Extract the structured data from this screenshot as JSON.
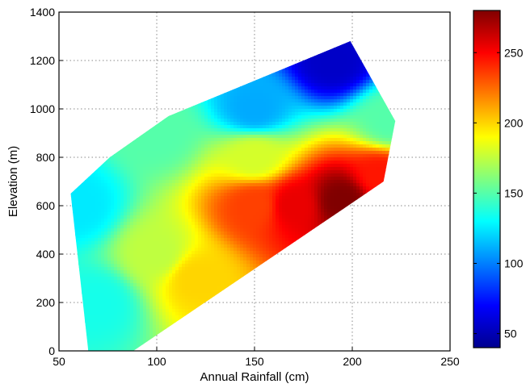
{
  "chart_data": {
    "type": "heatmap",
    "title": "",
    "xlabel": "Annual Rainfall (cm)",
    "ylabel": "Elevation (m)",
    "xlim": [
      50,
      250
    ],
    "ylim": [
      0,
      1400
    ],
    "xticks": [
      50,
      100,
      150,
      200,
      250
    ],
    "yticks": [
      0,
      200,
      400,
      600,
      800,
      1000,
      1200,
      1400
    ],
    "grid": true,
    "colormap": "jet",
    "colorbar": {
      "range": [
        40,
        280
      ],
      "ticks": [
        50,
        100,
        150,
        200,
        250
      ],
      "placement": "right"
    },
    "region_boundary": [
      [
        56,
        650
      ],
      [
        76,
        800
      ],
      [
        106,
        970
      ],
      [
        199,
        1280
      ],
      [
        222,
        950
      ],
      [
        216,
        700
      ],
      [
        196,
        590
      ],
      [
        88,
        0
      ],
      [
        65,
        0
      ]
    ],
    "value_samples": [
      {
        "x": 60,
        "y": 600,
        "value": 125
      },
      {
        "x": 70,
        "y": 200,
        "value": 135
      },
      {
        "x": 100,
        "y": 400,
        "value": 175
      },
      {
        "x": 120,
        "y": 300,
        "value": 200
      },
      {
        "x": 150,
        "y": 600,
        "value": 235
      },
      {
        "x": 170,
        "y": 600,
        "value": 255
      },
      {
        "x": 195,
        "y": 620,
        "value": 280
      },
      {
        "x": 215,
        "y": 720,
        "value": 245
      },
      {
        "x": 150,
        "y": 800,
        "value": 180
      },
      {
        "x": 150,
        "y": 1000,
        "value": 110
      },
      {
        "x": 190,
        "y": 1200,
        "value": 55
      },
      {
        "x": 220,
        "y": 950,
        "value": 150
      },
      {
        "x": 100,
        "y": 900,
        "value": 150
      }
    ]
  }
}
